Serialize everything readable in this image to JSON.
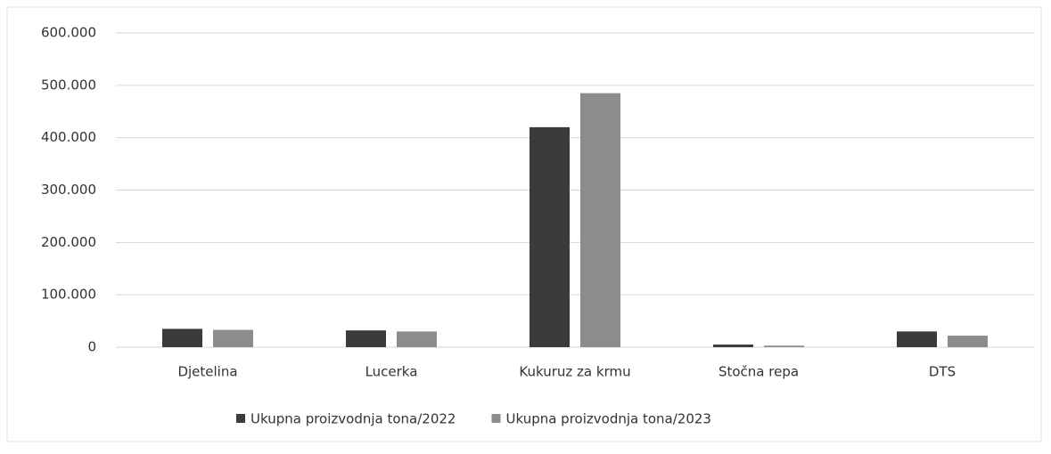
{
  "chart_data": {
    "type": "bar",
    "categories": [
      "Djetelina",
      "Lucerka",
      "Kukuruz za krmu",
      "Stočna repa",
      "DTS"
    ],
    "series": [
      {
        "name": "Ukupna proizvodnja tona/2022",
        "color": "#3b3b3b",
        "values": [
          35000,
          32000,
          420000,
          5000,
          30000
        ]
      },
      {
        "name": "Ukupna proizvodnja tona/2023",
        "color": "#8c8c8c",
        "values": [
          33000,
          30000,
          485000,
          3000,
          22000
        ]
      }
    ],
    "ylim": [
      0,
      600000
    ],
    "yticks": [
      0,
      {
        "value": 100000,
        "label": "100.000"
      },
      {
        "value": 200000,
        "label": "200.000"
      },
      {
        "value": 300000,
        "label": "300.000"
      },
      {
        "value": 400000,
        "label": "400.000"
      },
      {
        "value": 500000,
        "label": "500.000"
      },
      {
        "value": 600000,
        "label": "600.000"
      }
    ],
    "grid": true,
    "legend": "bottom"
  }
}
